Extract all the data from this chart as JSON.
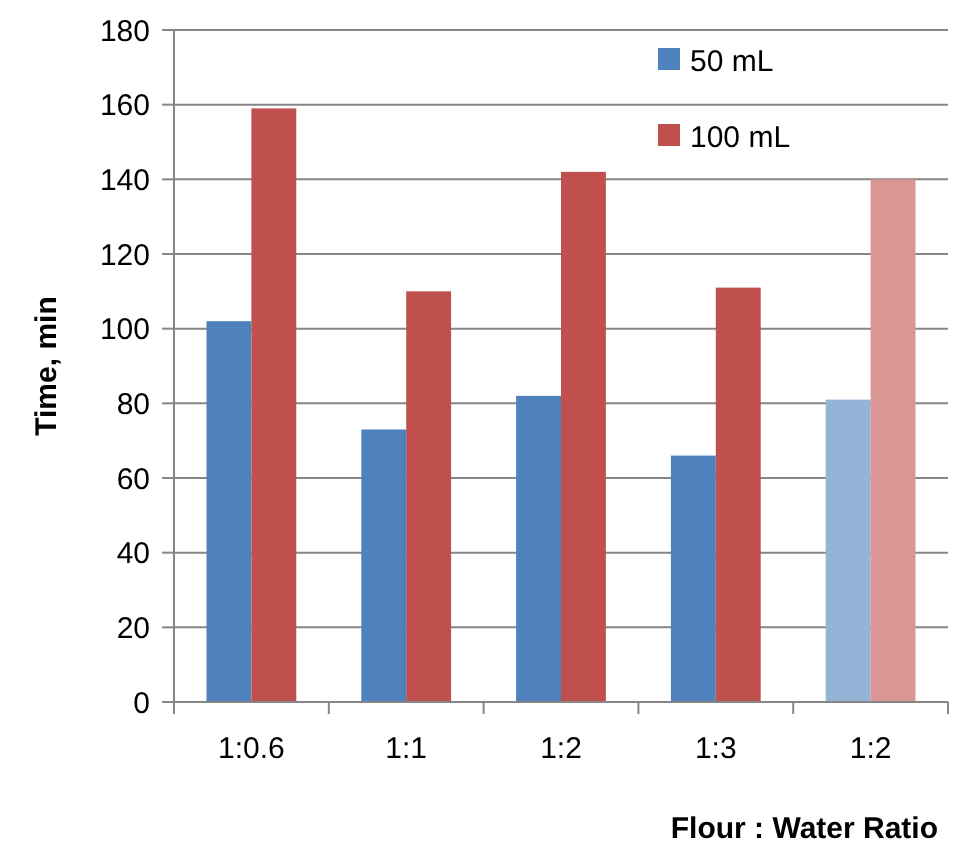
{
  "chart_data": {
    "type": "bar",
    "xlabel": "Flour : Water Ratio",
    "ylabel": "Time, min",
    "categories": [
      "1:0.6",
      "1:1",
      "1:2",
      "1:3",
      "1:2"
    ],
    "series": [
      {
        "name": "50 mL",
        "color": "#4f81bd",
        "colors": [
          "#4f81bd",
          "#4f81bd",
          "#4f81bd",
          "#4f81bd",
          "#95b3d7"
        ],
        "values": [
          102,
          73,
          82,
          66,
          81
        ]
      },
      {
        "name": "100 mL",
        "color": "#c0504d",
        "colors": [
          "#c0504d",
          "#c0504d",
          "#c0504d",
          "#c0504d",
          "#d99694"
        ],
        "values": [
          159,
          110,
          142,
          111,
          140
        ]
      }
    ],
    "ylim": [
      0,
      180
    ],
    "yticks": [
      0,
      20,
      40,
      60,
      80,
      100,
      120,
      140,
      160,
      180
    ],
    "grid": "y",
    "legend": "top right"
  }
}
